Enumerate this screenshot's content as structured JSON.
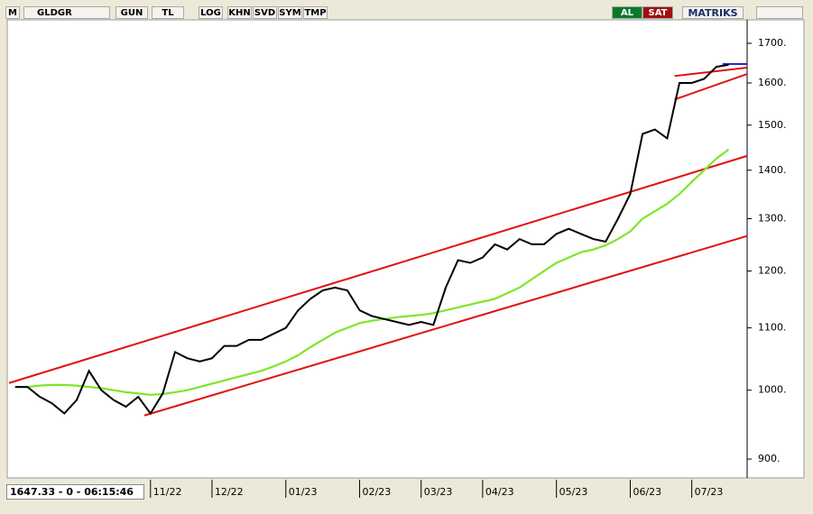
{
  "toolbar": {
    "logo": "M",
    "symbol": "GLDGR",
    "buttons": [
      "GUN",
      "TL",
      "LOG",
      "KHN",
      "SVD",
      "SYM",
      "TMP"
    ],
    "buy": "AL",
    "sell": "SAT",
    "brand": "MATRIKS"
  },
  "status": "1647.33 - 0 - 06:15:46",
  "chart_data": {
    "type": "line",
    "log_scale": true,
    "categories": [
      null,
      null,
      null,
      null,
      null,
      null,
      null,
      null,
      null,
      null,
      null,
      "11/22",
      null,
      null,
      null,
      null,
      "12/22",
      null,
      null,
      null,
      null,
      null,
      "01/23",
      null,
      null,
      null,
      null,
      null,
      "02/23",
      null,
      null,
      null,
      null,
      "03/23",
      null,
      null,
      null,
      null,
      "04/23",
      null,
      null,
      null,
      null,
      null,
      "05/23",
      null,
      null,
      null,
      null,
      null,
      "06/23",
      null,
      null,
      null,
      null,
      "07/23",
      null,
      null,
      null,
      null
    ],
    "series": [
      {
        "color": "#000000",
        "values": [
          1005,
          1005,
          990,
          980,
          965,
          985,
          1030,
          1000,
          985,
          975,
          990,
          965,
          995,
          1060,
          1050,
          1045,
          1050,
          1070,
          1070,
          1080,
          1080,
          1090,
          1100,
          1130,
          1150,
          1165,
          1170,
          1165,
          1130,
          1120,
          1115,
          1110,
          1105,
          1110,
          1105,
          1170,
          1220,
          1215,
          1225,
          1250,
          1240,
          1260,
          1250,
          1250,
          1270,
          1280,
          1270,
          1260,
          1255,
          1300,
          1350,
          1480,
          1490,
          1470,
          1600,
          1600,
          1610,
          1640,
          1645,
          null
        ]
      },
      {
        "color": "#7ee62a",
        "values": [
          1005,
          1005,
          1007,
          1008,
          1008,
          1007,
          1005,
          1003,
          1000,
          997,
          995,
          993,
          994,
          997,
          1000,
          1005,
          1010,
          1015,
          1020,
          1025,
          1030,
          1037,
          1045,
          1055,
          1068,
          1080,
          1092,
          1100,
          1108,
          1112,
          1115,
          1118,
          1120,
          1122,
          1125,
          1130,
          1135,
          1140,
          1145,
          1150,
          1160,
          1170,
          1185,
          1200,
          1215,
          1225,
          1235,
          1240,
          1248,
          1260,
          1275,
          1300,
          1315,
          1330,
          1350,
          1375,
          1400,
          1425,
          1445,
          null
        ]
      }
    ],
    "trend_lines": [
      {
        "color": "#e01010",
        "from": [
          -0.5,
          1011
        ],
        "to": [
          59.5,
          1431
        ]
      },
      {
        "color": "#e01010",
        "from": [
          10.5,
          962
        ],
        "to": [
          59.5,
          1266
        ]
      },
      {
        "color": "#e01010",
        "from": [
          53.6,
          1617
        ],
        "to": [
          59.5,
          1638
        ]
      },
      {
        "color": "#e01010",
        "from": [
          53.6,
          1560
        ],
        "to": [
          59.5,
          1622
        ]
      },
      {
        "color": "#2030c0",
        "from": [
          57.5,
          1647
        ],
        "to": [
          59.5,
          1647
        ]
      }
    ],
    "ylim": [
      878,
      1767
    ],
    "yticks": [
      {
        "value": 900,
        "label": "900."
      },
      {
        "value": 1000,
        "label": "1000."
      },
      {
        "value": 1100,
        "label": "1100."
      },
      {
        "value": 1200,
        "label": "1200."
      },
      {
        "value": 1300,
        "label": "1300."
      },
      {
        "value": 1400,
        "label": "1400."
      },
      {
        "value": 1500,
        "label": "1500."
      },
      {
        "value": 1600,
        "label": "1600."
      },
      {
        "value": 1700,
        "label": "1700."
      }
    ]
  }
}
